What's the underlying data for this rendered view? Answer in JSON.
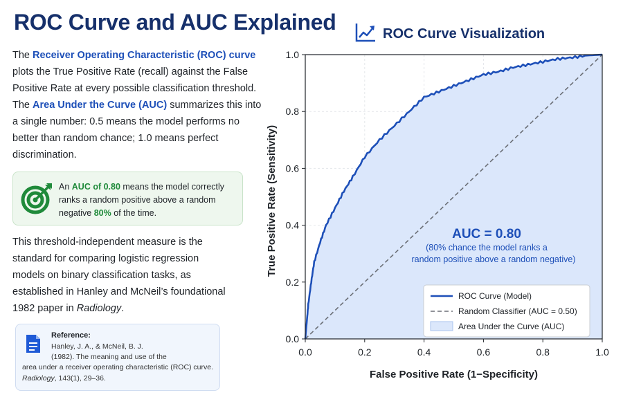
{
  "page": {
    "title": "ROC Curve and AUC Explained",
    "intro": {
      "t1": "The ",
      "h1": "Receiver Operating Characteristic (ROC) curve",
      "t2": " plots the True Positive Rate (recall) against the False Positive Rate at every possible classification threshold. The ",
      "h2": "Area Under the Curve (AUC)",
      "t3": " summarizes this into a single number: 0.5 means the model performs no better than random chance; 1.0 means perfect discrimination."
    },
    "callout": {
      "t1": "An ",
      "h1": "AUC of 0.80",
      "t2": " means the model correctly ranks a random positive above a random negative ",
      "h2": "80%",
      "t3": " of the time."
    },
    "paragraph2": {
      "t1": "This threshold-independent measure is the standard for comparing logistic regression models on binary classification tasks, as established in Hanley and McNeil’s foundational 1982 paper in ",
      "em": "Radiology",
      "t2": "."
    },
    "reference": {
      "heading": "Reference:",
      "line1": "Hanley, J. A., & McNeil, B. J.",
      "line2": "(1982). The meaning and use of the",
      "line3": "area under a receiver operating characteristic (ROC) curve.",
      "line4_em": "Radiology",
      "line4_rest": ", 143(1), 29–36."
    }
  },
  "colors": {
    "title": "#16306b",
    "accent": "#1d4fb8",
    "green": "#1f8a3a",
    "curve": "#1d4fb8",
    "fill": "#dbe7fb",
    "diagonal": "#6b6f76"
  },
  "icons": {
    "chart_title_icon": "line-chart-up-icon",
    "callout_icon": "target-icon",
    "reference_icon": "document-icon"
  },
  "chart_data": {
    "type": "line",
    "title": "ROC Curve Visualization",
    "xlabel": "False Positive Rate (1−Specificity)",
    "ylabel": "True Positive Rate (Sensitivity)",
    "xlim": [
      0,
      1
    ],
    "ylim": [
      0,
      1
    ],
    "xticks": [
      "0.0",
      "0.2",
      "0.4",
      "0.6",
      "0.8",
      "1.0"
    ],
    "yticks": [
      "0.0",
      "0.2",
      "0.4",
      "0.6",
      "0.8",
      "1.0"
    ],
    "grid": true,
    "legend_position": "bottom-right",
    "series": [
      {
        "name": "ROC Curve (Model)",
        "x": [
          0,
          0.005,
          0.01,
          0.02,
          0.03,
          0.05,
          0.07,
          0.1,
          0.13,
          0.16,
          0.2,
          0.25,
          0.3,
          0.35,
          0.4,
          0.45,
          0.5,
          0.55,
          0.6,
          0.65,
          0.7,
          0.75,
          0.8,
          0.85,
          0.9,
          0.95,
          1.0
        ],
        "y": [
          0,
          0.06,
          0.12,
          0.2,
          0.27,
          0.34,
          0.4,
          0.46,
          0.52,
          0.57,
          0.64,
          0.7,
          0.75,
          0.8,
          0.85,
          0.87,
          0.89,
          0.91,
          0.93,
          0.94,
          0.955,
          0.965,
          0.975,
          0.985,
          0.99,
          0.997,
          1.0
        ]
      },
      {
        "name": "Random Classifier (AUC = 0.50)",
        "x": [
          0,
          1
        ],
        "y": [
          0,
          1
        ]
      }
    ],
    "area_label": "Area Under the Curve (AUC)",
    "annotation": {
      "main": "AUC = 0.80",
      "sub1": "(80% chance the model ranks a",
      "sub2": "random positive above a random negative)"
    }
  }
}
